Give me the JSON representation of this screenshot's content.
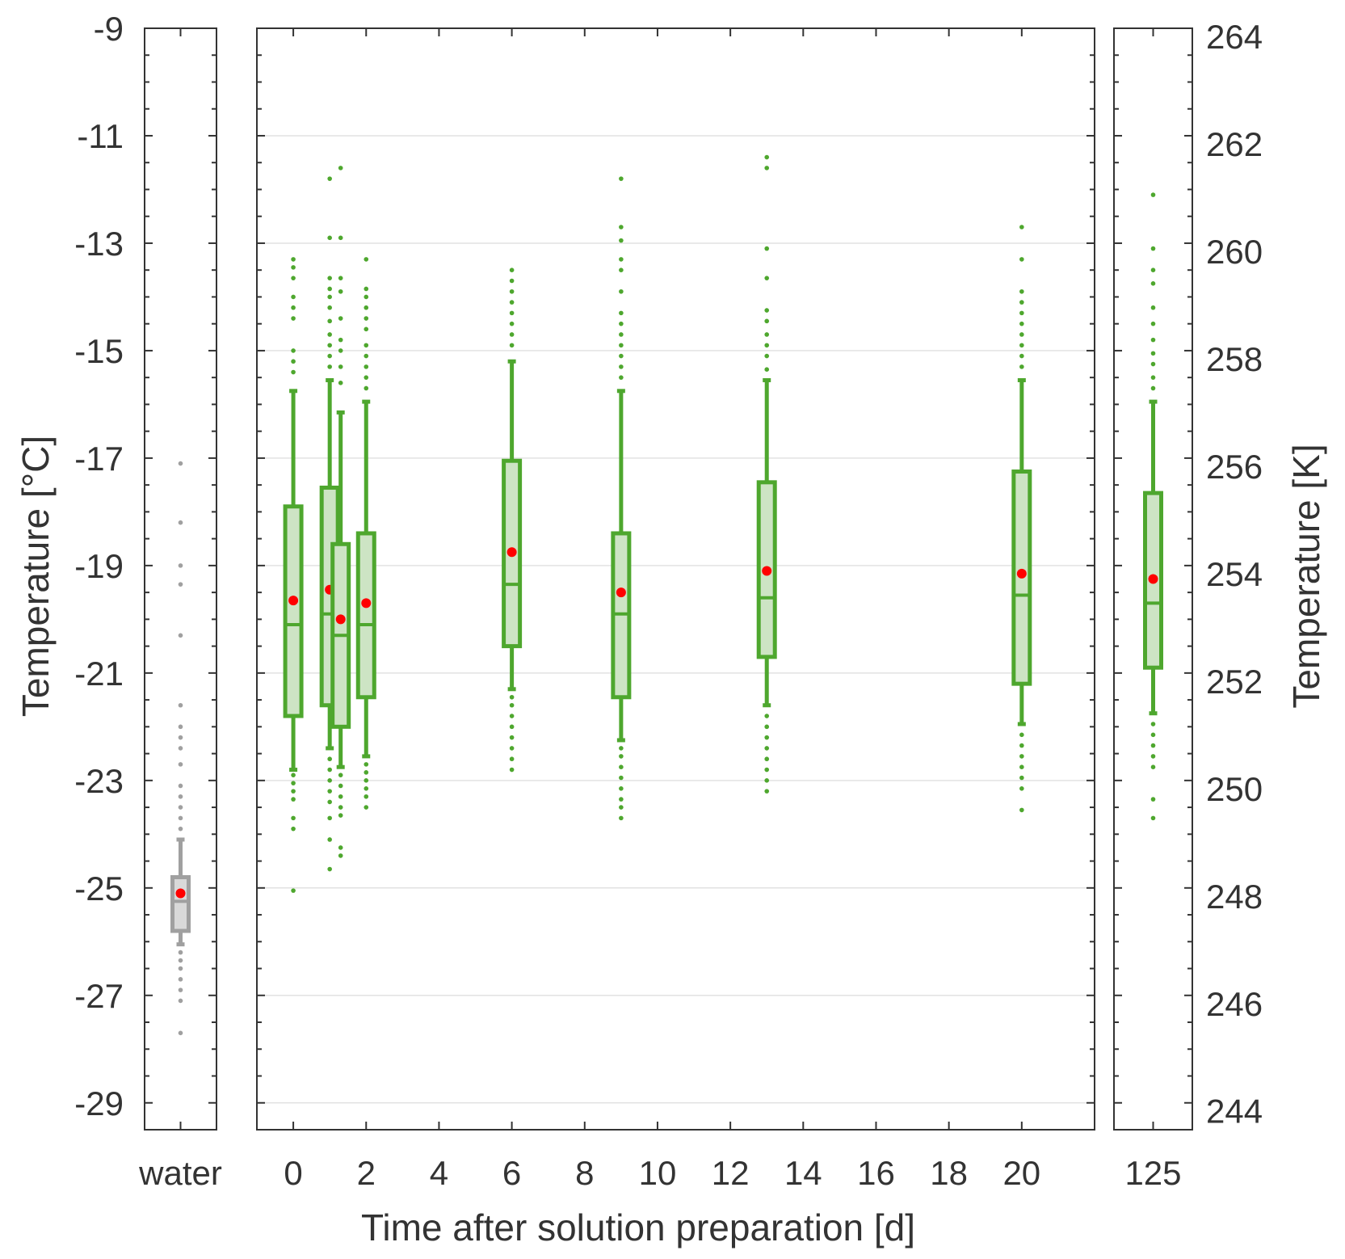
{
  "chart_data": {
    "type": "box",
    "ylabel_left": "Temperature [°C]",
    "ylabel_right": "Temperature [K]",
    "xlabel": "Time after solution preparation [d]",
    "ylim_left": [
      -29.5,
      -9
    ],
    "ylim_right": [
      243.65,
      264.15
    ],
    "yticks_left": [
      -9,
      -11,
      -13,
      -15,
      -17,
      -19,
      -21,
      -23,
      -25,
      -27,
      -29
    ],
    "yticks_right": [
      264,
      262,
      260,
      258,
      256,
      254,
      252,
      250,
      248,
      246,
      244
    ],
    "grid": true,
    "colors": {
      "water": "#a0a0a0",
      "solution": "#4ea72e",
      "box_fill": "#cde4c4",
      "mean": "#ff0000"
    },
    "panels": [
      {
        "name": "water-panel",
        "xtick_labels": [
          "water"
        ],
        "boxes": [
          {
            "x": "water",
            "q1": -25.8,
            "median": -25.25,
            "q3": -24.8,
            "whisker_low": -26.05,
            "whisker_high": -24.1,
            "mean": -25.1,
            "outliers_high": [
              -23.9,
              -23.7,
              -23.5,
              -23.3,
              -23.1,
              -22.7,
              -22.4,
              -22.2,
              -22.0,
              -21.6,
              -20.3,
              -19.35,
              -19.0,
              -18.2,
              -17.1
            ],
            "outliers_low": [
              -26.2,
              -26.35,
              -26.5,
              -26.7,
              -26.9,
              -27.1,
              -27.7
            ]
          }
        ]
      },
      {
        "name": "main-panel",
        "xlim": [
          -1,
          22
        ],
        "xticks": [
          0,
          2,
          4,
          6,
          8,
          10,
          12,
          14,
          16,
          18,
          20
        ],
        "boxes": [
          {
            "x": 0,
            "q1": -21.8,
            "median": -20.1,
            "q3": -17.9,
            "whisker_low": -22.8,
            "whisker_high": -15.75,
            "mean": -19.65,
            "outliers_high": [
              -15.4,
              -15.2,
              -15.0,
              -14.4,
              -14.2,
              -14.0,
              -13.65,
              -13.45,
              -13.3
            ],
            "outliers_low": [
              -22.9,
              -23.05,
              -23.2,
              -23.35,
              -23.7,
              -23.9,
              -25.05
            ]
          },
          {
            "x": 1,
            "q1": -21.6,
            "median": -19.9,
            "q3": -17.55,
            "whisker_low": -22.4,
            "whisker_high": -15.55,
            "mean": -19.45,
            "outliers_high": [
              -15.3,
              -15.1,
              -14.9,
              -14.7,
              -14.45,
              -14.2,
              -14.0,
              -13.85,
              -13.65,
              -12.9,
              -11.8
            ],
            "outliers_low": [
              -22.6,
              -22.8,
              -23.0,
              -23.2,
              -23.4,
              -23.7,
              -24.1,
              -24.65
            ]
          },
          {
            "x": 1.3,
            "q1": -22.0,
            "median": -20.3,
            "q3": -18.6,
            "whisker_low": -22.75,
            "whisker_high": -16.15,
            "mean": -20.0,
            "outliers_high": [
              -15.6,
              -15.3,
              -15.0,
              -14.8,
              -14.4,
              -13.9,
              -13.65,
              -12.9,
              -11.6
            ],
            "outliers_low": [
              -22.9,
              -23.1,
              -23.3,
              -23.5,
              -23.65,
              -24.25,
              -24.4
            ]
          },
          {
            "x": 2,
            "q1": -21.45,
            "median": -20.1,
            "q3": -18.4,
            "whisker_low": -22.55,
            "whisker_high": -15.95,
            "mean": -19.7,
            "outliers_high": [
              -15.7,
              -15.5,
              -15.3,
              -15.1,
              -14.9,
              -14.6,
              -14.4,
              -14.2,
              -14.0,
              -13.85,
              -13.3
            ],
            "outliers_low": [
              -22.7,
              -22.85,
              -23.0,
              -23.15,
              -23.3,
              -23.5
            ]
          },
          {
            "x": 6,
            "q1": -20.5,
            "median": -19.35,
            "q3": -17.05,
            "whisker_low": -21.3,
            "whisker_high": -15.2,
            "mean": -18.75,
            "outliers_high": [
              -14.9,
              -14.7,
              -14.5,
              -14.3,
              -14.1,
              -13.9,
              -13.7,
              -13.5
            ],
            "outliers_low": [
              -21.45,
              -21.6,
              -21.8,
              -22.0,
              -22.2,
              -22.4,
              -22.6,
              -22.8
            ]
          },
          {
            "x": 9,
            "q1": -21.45,
            "median": -19.9,
            "q3": -18.4,
            "whisker_low": -22.25,
            "whisker_high": -15.75,
            "mean": -19.5,
            "outliers_high": [
              -15.5,
              -15.3,
              -15.1,
              -14.9,
              -14.7,
              -14.5,
              -14.3,
              -13.9,
              -13.5,
              -13.3,
              -12.95,
              -12.7,
              -11.8
            ],
            "outliers_low": [
              -22.4,
              -22.55,
              -22.75,
              -22.95,
              -23.15,
              -23.35,
              -23.5,
              -23.7
            ]
          },
          {
            "x": 13,
            "q1": -20.7,
            "median": -19.6,
            "q3": -17.45,
            "whisker_low": -21.6,
            "whisker_high": -15.55,
            "mean": -19.1,
            "outliers_high": [
              -15.35,
              -15.1,
              -14.9,
              -14.7,
              -14.45,
              -14.25,
              -13.65,
              -13.1,
              -11.6,
              -11.4
            ],
            "outliers_low": [
              -21.8,
              -22.0,
              -22.2,
              -22.4,
              -22.6,
              -22.8,
              -23.0,
              -23.2
            ]
          },
          {
            "x": 20,
            "q1": -21.2,
            "median": -19.55,
            "q3": -17.25,
            "whisker_low": -21.95,
            "whisker_high": -15.55,
            "mean": -19.15,
            "outliers_high": [
              -15.3,
              -15.1,
              -14.9,
              -14.7,
              -14.5,
              -14.3,
              -14.1,
              -13.9,
              -13.3,
              -12.7
            ],
            "outliers_low": [
              -22.15,
              -22.35,
              -22.55,
              -22.75,
              -22.95,
              -23.15,
              -23.55
            ]
          }
        ]
      },
      {
        "name": "day125-panel",
        "xtick_labels": [
          "125"
        ],
        "boxes": [
          {
            "x": "125",
            "q1": -20.9,
            "median": -19.7,
            "q3": -17.65,
            "whisker_low": -21.75,
            "whisker_high": -15.95,
            "mean": -19.25,
            "outliers_high": [
              -15.7,
              -15.5,
              -15.25,
              -15.05,
              -14.8,
              -14.5,
              -14.2,
              -13.75,
              -13.5,
              -13.1,
              -12.1
            ],
            "outliers_low": [
              -21.95,
              -22.15,
              -22.35,
              -22.55,
              -22.75,
              -23.35,
              -23.7
            ]
          }
        ]
      }
    ]
  }
}
